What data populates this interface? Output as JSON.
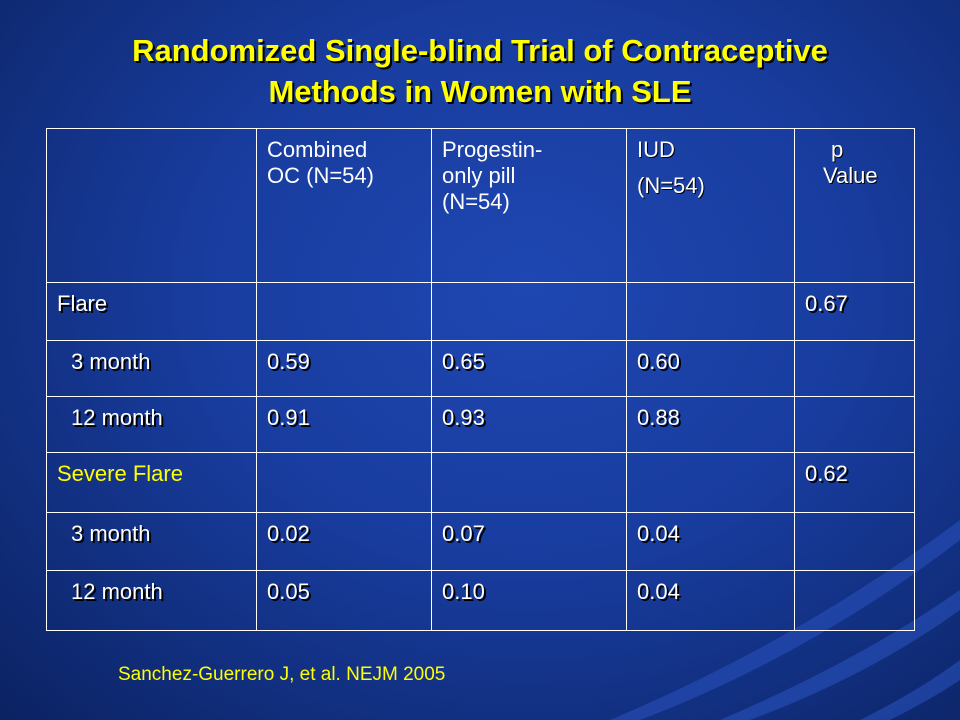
{
  "slide": {
    "title_line1": "Randomized Single-blind Trial of Contraceptive",
    "title_line2": "Methods in Women with SLE",
    "citation": "Sanchez-Guerrero J, et al. NEJM 2005"
  },
  "table": {
    "headers": {
      "col1_line1": "Combined",
      "col1_line2": "OC (N=54)",
      "col2_line1": "Progestin-",
      "col2_line2": "only pill",
      "col2_line3": "(N=54)",
      "col3_line1": "IUD",
      "col3_line2": "(N=54)",
      "col4_line1": "p",
      "col4_line2": "Value"
    },
    "rows": [
      {
        "label": "Flare",
        "c1": "",
        "c2": "",
        "c3": "",
        "p": "0.67"
      },
      {
        "label": "3 month",
        "c1": "0.59",
        "c2": "0.65",
        "c3": "0.60",
        "p": ""
      },
      {
        "label": "12 month",
        "c1": "0.91",
        "c2": "0.93",
        "c3": "0.88",
        "p": ""
      },
      {
        "label": "Severe Flare",
        "c1": "",
        "c2": "",
        "c3": "",
        "p": "0.62"
      },
      {
        "label": "3 month",
        "c1": "0.02",
        "c2": "0.07",
        "c3": "0.04",
        "p": ""
      },
      {
        "label": "12 month",
        "c1": "0.05",
        "c2": "0.10",
        "c3": "0.04",
        "p": ""
      }
    ]
  },
  "colors": {
    "background": "#183c9e",
    "title": "#ffff00",
    "table_text": "#ffffff",
    "severe_flare": "#ffff00",
    "citation": "#ffff00"
  }
}
